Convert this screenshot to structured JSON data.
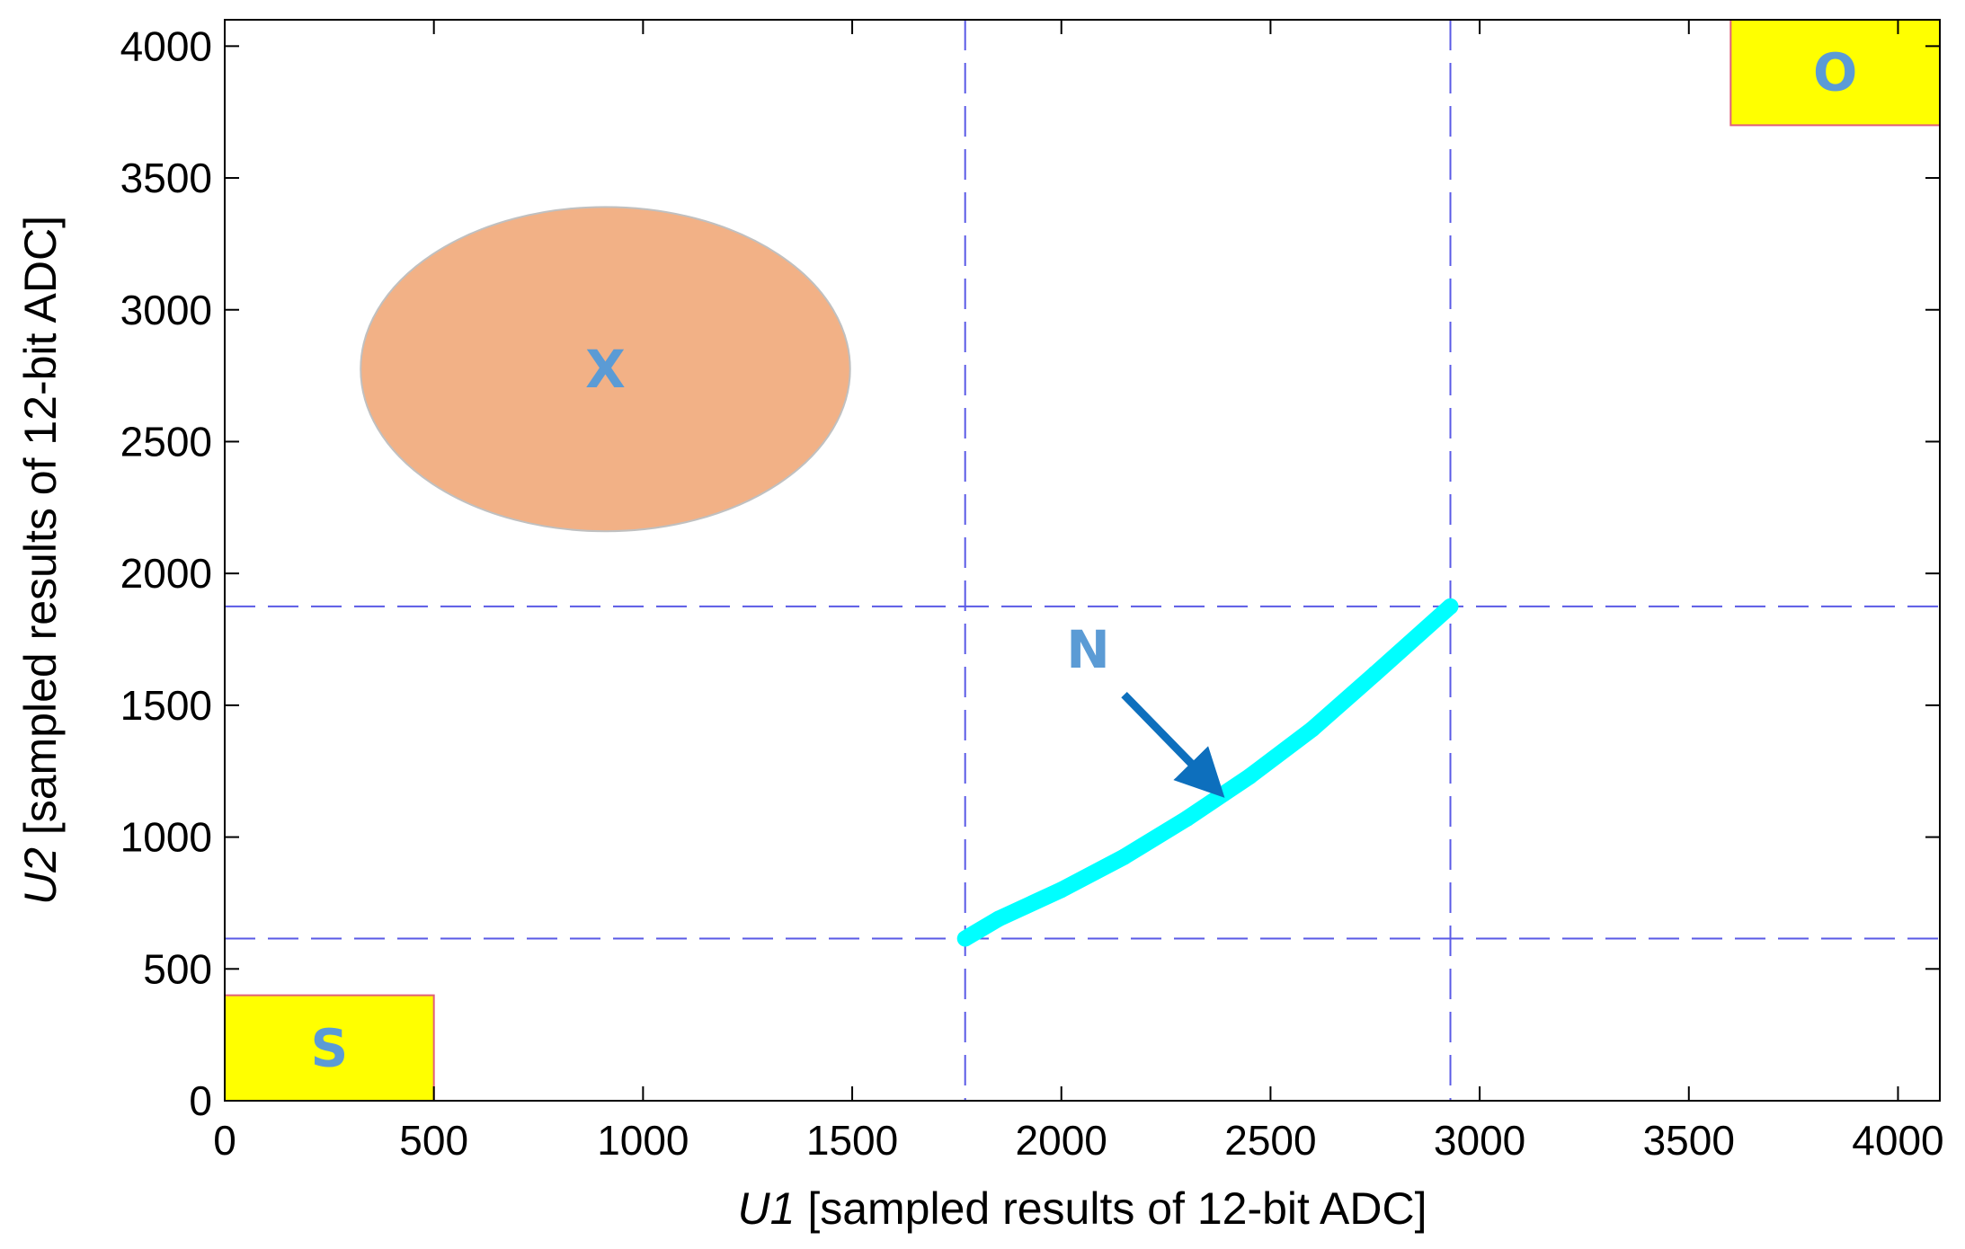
{
  "chart_data": {
    "type": "scatter",
    "title": "",
    "xlabel": {
      "var": "U1",
      "rest": " [sampled results of 12-bit ADC]"
    },
    "ylabel": {
      "var": "U2",
      "rest": " [sampled results of 12-bit ADC]"
    },
    "xlim": [
      0,
      4100
    ],
    "ylim": [
      0,
      4100
    ],
    "xticks": [
      0,
      500,
      1000,
      1500,
      2000,
      2500,
      3000,
      3500,
      4000
    ],
    "yticks": [
      0,
      500,
      1000,
      1500,
      2000,
      2500,
      3000,
      3500,
      4000
    ],
    "grid": false,
    "reference_lines": {
      "vertical": [
        1770,
        2930
      ],
      "horizontal": [
        615,
        1875
      ],
      "style": "dashed",
      "color": "#5a5ae6"
    },
    "regions": [
      {
        "label": "S",
        "shape": "rectangle",
        "x": [
          0,
          500
        ],
        "y": [
          0,
          400
        ],
        "fill": "#ffff00",
        "stroke": "#e0607a"
      },
      {
        "label": "O",
        "shape": "rectangle",
        "x": [
          3600,
          4100
        ],
        "y": [
          3700,
          4100
        ],
        "fill": "#ffff00",
        "stroke": "#e0607a"
      },
      {
        "label": "X",
        "shape": "ellipse",
        "center": [
          910,
          2775
        ],
        "radius": [
          585,
          615
        ],
        "fill": "#f2b186",
        "stroke": "#c0c0c0"
      }
    ],
    "series": [
      {
        "label": "N",
        "color": "#00ffff",
        "points": [
          [
            1770,
            615
          ],
          [
            1850,
            690
          ],
          [
            2000,
            800
          ],
          [
            2150,
            925
          ],
          [
            2300,
            1070
          ],
          [
            2450,
            1230
          ],
          [
            2600,
            1410
          ],
          [
            2750,
            1620
          ],
          [
            2930,
            1875
          ]
        ]
      }
    ],
    "annotation_arrow": {
      "from": [
        2150,
        1540
      ],
      "to": [
        2350,
        1215
      ],
      "color": "#0d6fbd"
    }
  }
}
